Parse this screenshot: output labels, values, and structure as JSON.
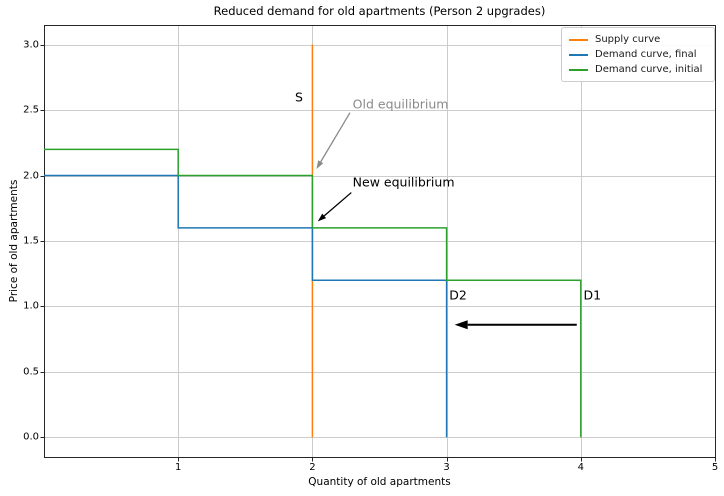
{
  "chart_data": {
    "type": "line",
    "title": "Reduced demand for old apartments (Person 2 upgrades)",
    "xlabel": "Quantity of old apartments",
    "ylabel": "Price of old apartments",
    "xlim": [
      0,
      5
    ],
    "ylim": [
      -0.15,
      3.15
    ],
    "xtick_values": [
      1,
      2,
      3,
      4,
      5
    ],
    "xtick_labels": [
      "1",
      "2",
      "3",
      "4",
      "5"
    ],
    "ytick_values": [
      0,
      0.5,
      1,
      1.5,
      2,
      2.5,
      3
    ],
    "ytick_labels": [
      "0.0",
      "0.5",
      "1.0",
      "1.5",
      "2.0",
      "2.5",
      "3.0"
    ],
    "grid": true,
    "legend": {
      "position": "upper right"
    },
    "colors": {
      "supply": "#ff7f0e",
      "demand_final": "#1f77b4",
      "demand_initial": "#2ca02c",
      "grid": "#cccccc",
      "spine": "#262626",
      "background": "#ffffff",
      "text": "#000000",
      "muted_gray": "#8a8a8a"
    },
    "series": [
      {
        "name": "Supply curve",
        "color": "#ff7f0e",
        "points": [
          [
            2,
            0
          ],
          [
            2,
            3
          ]
        ]
      },
      {
        "name": "Demand curve, final",
        "color": "#1f77b4",
        "points": [
          [
            0,
            2
          ],
          [
            1,
            2
          ],
          [
            1,
            1.6
          ],
          [
            2,
            1.6
          ],
          [
            2,
            1.2
          ],
          [
            3,
            1.2
          ],
          [
            3,
            0
          ]
        ]
      },
      {
        "name": "Demand curve, initial",
        "color": "#2ca02c",
        "points": [
          [
            0,
            2.2
          ],
          [
            1,
            2.2
          ],
          [
            1,
            2
          ],
          [
            2,
            2
          ],
          [
            2,
            1.6
          ],
          [
            3,
            1.6
          ],
          [
            3,
            1.2
          ],
          [
            4,
            1.2
          ],
          [
            4,
            0
          ]
        ]
      }
    ],
    "annotations": [
      {
        "id": "supply-label",
        "text": "S",
        "color": "#000000",
        "x": 1.9,
        "y": 2.6,
        "align": "center"
      },
      {
        "id": "old-equilibrium-label",
        "text": "Old equilibrium",
        "color": "#8a8a8a",
        "x": 2.3,
        "y": 2.55,
        "align": "left",
        "arrow": {
          "from": [
            2.28,
            2.48
          ],
          "to": [
            2.03,
            2.05
          ],
          "color": "#8a8a8a",
          "width": 1.3
        }
      },
      {
        "id": "new-equilibrium-label",
        "text": "New equilibrium",
        "color": "#000000",
        "x": 2.3,
        "y": 1.95,
        "align": "left",
        "arrow": {
          "from": [
            2.29,
            1.87
          ],
          "to": [
            2.04,
            1.65
          ],
          "color": "#000000",
          "width": 1.3
        }
      },
      {
        "id": "d2-label",
        "text": "D2",
        "color": "#000000",
        "x": 3.02,
        "y": 1.09,
        "align": "left"
      },
      {
        "id": "d1-label",
        "text": "D1",
        "color": "#000000",
        "x": 4.02,
        "y": 1.09,
        "align": "left"
      }
    ],
    "arrows": [
      {
        "id": "demand-shift-arrow",
        "from": [
          3.97,
          0.86
        ],
        "to": [
          3.06,
          0.86
        ],
        "color": "#000000",
        "width": 2
      }
    ]
  }
}
